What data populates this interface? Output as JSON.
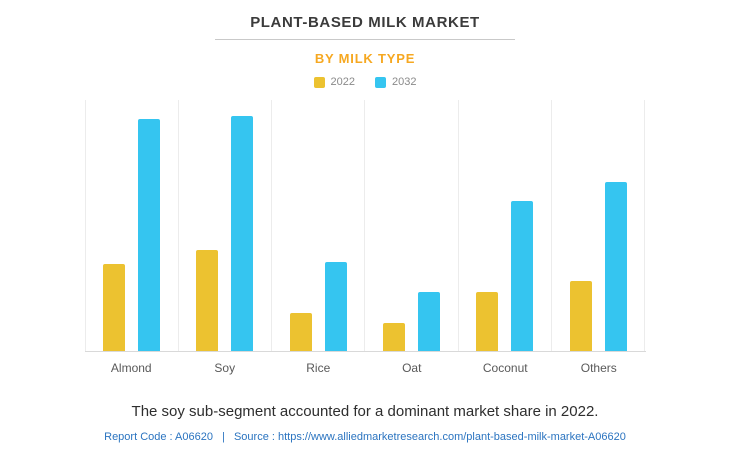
{
  "header": {
    "title": "PLANT-BASED MILK MARKET",
    "subtitle": "BY MILK TYPE"
  },
  "chart_data": {
    "type": "bar",
    "title": "PLANT-BASED MILK MARKET",
    "subtitle": "BY MILK TYPE",
    "categories": [
      "Almond",
      "Soy",
      "Rice",
      "Oat",
      "Coconut",
      "Others"
    ],
    "series": [
      {
        "name": "2022",
        "color": "#ecc230",
        "values": [
          37,
          43,
          16,
          12,
          25,
          30
        ]
      },
      {
        "name": "2032",
        "color": "#35c5f0",
        "values": [
          99,
          100,
          38,
          25,
          64,
          72
        ]
      }
    ],
    "xlabel": "",
    "ylabel": "",
    "ylim": [
      0,
      107
    ],
    "y_axis_labels_visible": false,
    "grid": "vertical",
    "legend_position": "top"
  },
  "caption": "The soy sub-segment accounted for a dominant market share in 2022.",
  "footer": {
    "report_code": "Report Code : A06620",
    "separator": "|",
    "source_label": "Source :",
    "source_url": "https://www.alliedmarketresearch.com/plant-based-milk-market-A06620"
  },
  "colors": {
    "accent_orange": "#f6a821",
    "bar_2022": "#ecc230",
    "bar_2032": "#35c5f0",
    "footer_link": "#2b74c0"
  }
}
